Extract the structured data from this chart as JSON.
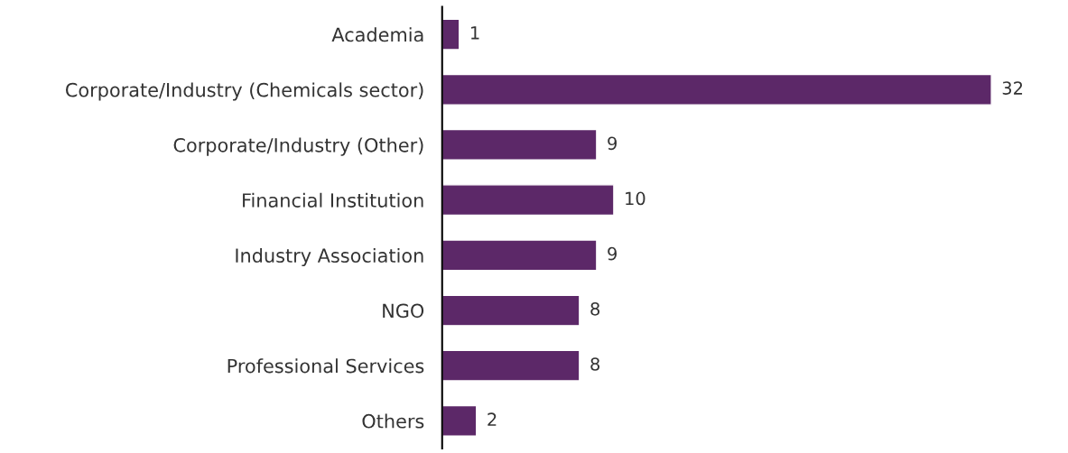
{
  "chart_data": {
    "type": "bar",
    "orientation": "horizontal",
    "categories": [
      "Academia",
      "Corporate/Industry (Chemicals sector)",
      "Corporate/Industry (Other)",
      "Financial Institution",
      "Industry Association",
      "NGO",
      "Professional Services",
      "Others"
    ],
    "values": [
      1,
      32,
      9,
      10,
      9,
      8,
      8,
      2
    ],
    "color": "#5c2868",
    "data_labels": true,
    "grid": false,
    "legend": false
  }
}
